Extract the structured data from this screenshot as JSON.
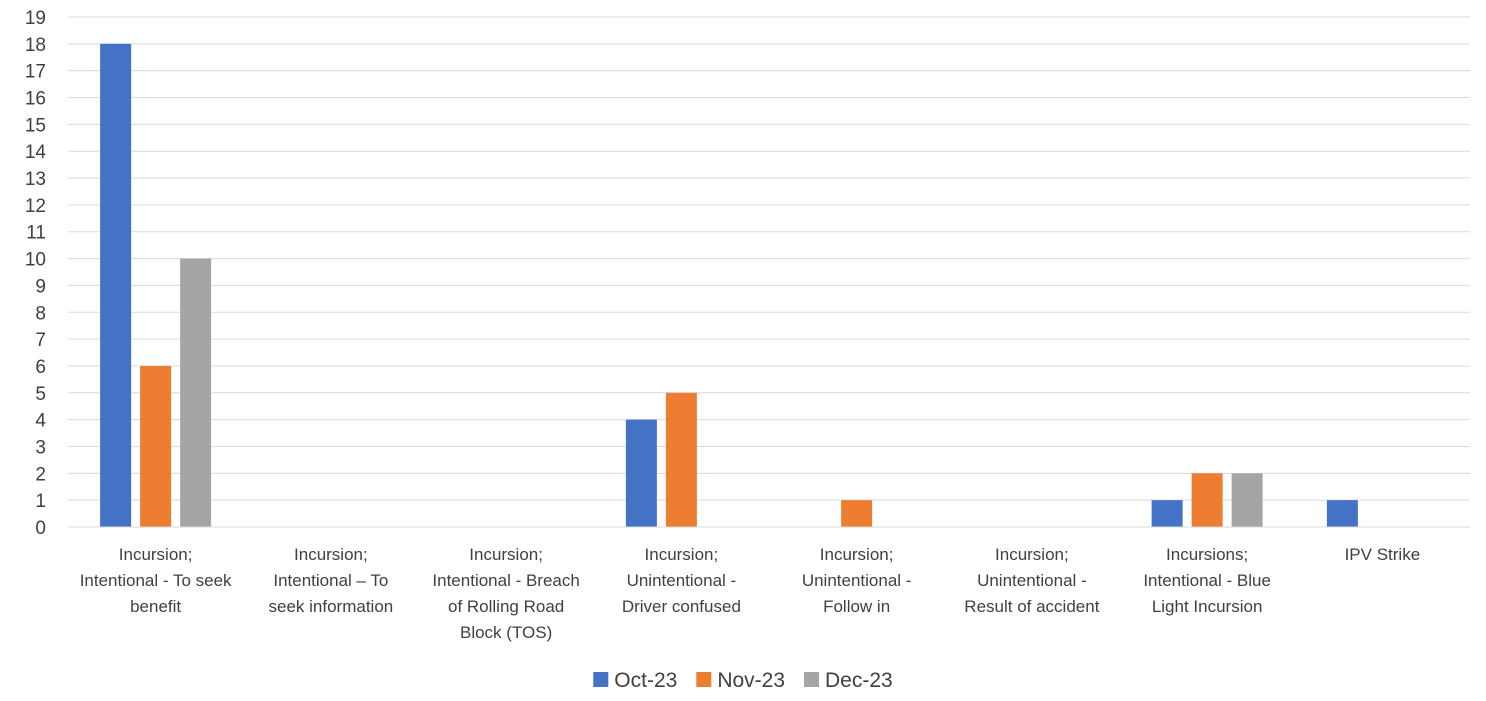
{
  "chart_data": {
    "type": "bar",
    "title": "",
    "xlabel": "",
    "ylabel": "",
    "ylim": [
      0,
      19
    ],
    "yticks": [
      0,
      1,
      2,
      3,
      4,
      5,
      6,
      7,
      8,
      9,
      10,
      11,
      12,
      13,
      14,
      15,
      16,
      17,
      18,
      19
    ],
    "grid": "horizontal",
    "legend_position": "bottom",
    "categories": [
      [
        "Incursion;",
        "Intentional - To seek",
        "benefit"
      ],
      [
        "Incursion;",
        "Intentional – To",
        "seek information"
      ],
      [
        "Incursion;",
        "Intentional - Breach",
        "of Rolling Road",
        "Block (TOS)"
      ],
      [
        "Incursion;",
        "Unintentional -",
        "Driver confused"
      ],
      [
        "Incursion;",
        "Unintentional -",
        "Follow in"
      ],
      [
        "Incursion;",
        "Unintentional -",
        "Result of accident"
      ],
      [
        "Incursions;",
        "Intentional - Blue",
        "Light Incursion"
      ],
      [
        "IPV Strike"
      ]
    ],
    "series": [
      {
        "name": "Oct-23",
        "color": "#4472c4",
        "values": [
          18,
          0,
          0,
          4,
          0,
          0,
          1,
          1
        ]
      },
      {
        "name": "Nov-23",
        "color": "#ed7d31",
        "values": [
          6,
          0,
          0,
          5,
          1,
          0,
          2,
          0
        ]
      },
      {
        "name": "Dec-23",
        "color": "#a5a5a5",
        "values": [
          10,
          0,
          0,
          0,
          0,
          0,
          2,
          0
        ]
      }
    ]
  }
}
